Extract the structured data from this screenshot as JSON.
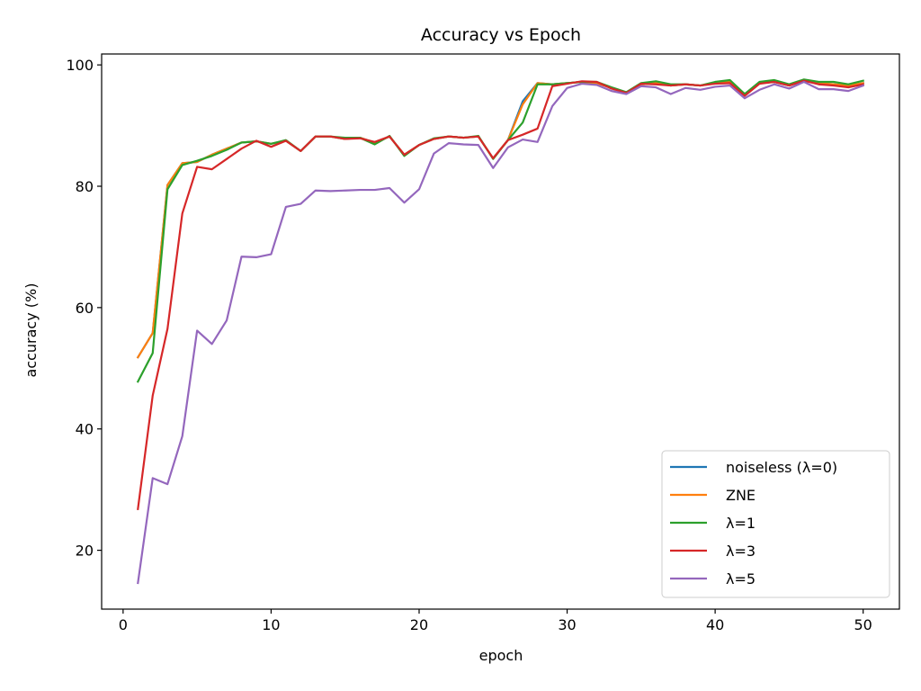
{
  "chart_data": {
    "type": "line",
    "title": "Accuracy vs Epoch",
    "xlabel": "epoch",
    "ylabel": "accuracy (%)",
    "xlim": [
      -1.45,
      52.45
    ],
    "ylim": [
      10.3,
      101.8
    ],
    "xticks": [
      0,
      10,
      20,
      30,
      40,
      50
    ],
    "yticks": [
      20,
      40,
      60,
      80,
      100
    ],
    "grid": false,
    "legend_position": "lower-right",
    "x": [
      1,
      2,
      3,
      4,
      5,
      6,
      7,
      8,
      9,
      10,
      11,
      12,
      13,
      14,
      15,
      16,
      17,
      18,
      19,
      20,
      21,
      22,
      23,
      24,
      25,
      26,
      27,
      28,
      29,
      30,
      31,
      32,
      33,
      34,
      35,
      36,
      37,
      38,
      39,
      40,
      41,
      42,
      43,
      44,
      45,
      46,
      47,
      48,
      49,
      50
    ],
    "series": [
      {
        "name": "noiseless (λ=0)",
        "color": "#1f77b4",
        "values": [
          51.8,
          55.8,
          80.2,
          83.8,
          84.0,
          85.2,
          86.2,
          87.2,
          87.4,
          87.0,
          87.5,
          85.8,
          88.2,
          88.2,
          87.8,
          88.0,
          87.2,
          88.2,
          85.2,
          86.8,
          87.8,
          88.2,
          88.0,
          88.2,
          84.6,
          87.6,
          94.0,
          97.0,
          96.8,
          97.0,
          97.2,
          97.0,
          96.2,
          95.4,
          96.8,
          97.0,
          96.6,
          96.8,
          96.6,
          97.0,
          97.2,
          95.2,
          97.0,
          97.2,
          96.6,
          97.4,
          97.0,
          96.8,
          96.6,
          97.0
        ]
      },
      {
        "name": "ZNE",
        "color": "#ff7f0e",
        "values": [
          51.8,
          55.8,
          80.2,
          83.8,
          84.0,
          85.2,
          86.2,
          87.2,
          87.4,
          87.0,
          87.5,
          85.8,
          88.2,
          88.2,
          87.8,
          88.0,
          87.2,
          88.2,
          85.2,
          86.8,
          87.8,
          88.2,
          88.0,
          88.2,
          84.6,
          87.6,
          93.5,
          97.0,
          96.8,
          97.0,
          97.2,
          97.0,
          96.2,
          95.4,
          96.8,
          97.0,
          96.6,
          96.8,
          96.6,
          97.0,
          97.2,
          95.2,
          97.0,
          97.2,
          96.6,
          97.4,
          97.0,
          96.8,
          96.6,
          97.0
        ]
      },
      {
        "name": "λ=1",
        "color": "#2ca02c",
        "values": [
          47.8,
          52.5,
          79.5,
          83.5,
          84.2,
          85.0,
          86.0,
          87.2,
          87.4,
          87.0,
          87.6,
          85.8,
          88.2,
          88.2,
          88.0,
          88.0,
          86.9,
          88.3,
          85.0,
          86.8,
          87.9,
          88.2,
          88.0,
          88.3,
          84.5,
          87.6,
          90.5,
          96.8,
          96.8,
          97.0,
          97.2,
          97.2,
          96.3,
          95.5,
          97.0,
          97.3,
          96.8,
          96.8,
          96.6,
          97.2,
          97.5,
          95.2,
          97.2,
          97.5,
          96.8,
          97.6,
          97.2,
          97.2,
          96.8,
          97.4
        ]
      },
      {
        "name": "λ=3",
        "color": "#d62728",
        "values": [
          26.8,
          45.5,
          56.5,
          75.5,
          83.2,
          82.8,
          84.5,
          86.2,
          87.5,
          86.5,
          87.5,
          85.8,
          88.2,
          88.2,
          87.8,
          87.9,
          87.3,
          88.2,
          85.2,
          86.8,
          87.8,
          88.2,
          88.0,
          88.2,
          84.6,
          87.6,
          88.5,
          89.5,
          96.5,
          96.9,
          97.3,
          97.2,
          96.1,
          95.4,
          96.9,
          96.8,
          96.6,
          96.8,
          96.6,
          96.9,
          97.0,
          94.9,
          96.9,
          97.2,
          96.6,
          97.4,
          96.8,
          96.6,
          96.3,
          96.8
        ]
      },
      {
        "name": "λ=5",
        "color": "#9467bd",
        "values": [
          14.6,
          31.9,
          30.9,
          38.8,
          56.2,
          54.0,
          57.9,
          68.4,
          68.3,
          68.8,
          76.6,
          77.1,
          79.3,
          79.2,
          79.3,
          79.4,
          79.4,
          79.7,
          77.3,
          79.5,
          85.4,
          87.1,
          86.9,
          86.8,
          83.0,
          86.4,
          87.7,
          87.3,
          93.2,
          96.2,
          96.9,
          96.7,
          95.7,
          95.2,
          96.5,
          96.3,
          95.2,
          96.2,
          95.9,
          96.4,
          96.6,
          94.5,
          95.9,
          96.8,
          96.1,
          97.2,
          96.0,
          96.0,
          95.7,
          96.6
        ]
      }
    ]
  }
}
